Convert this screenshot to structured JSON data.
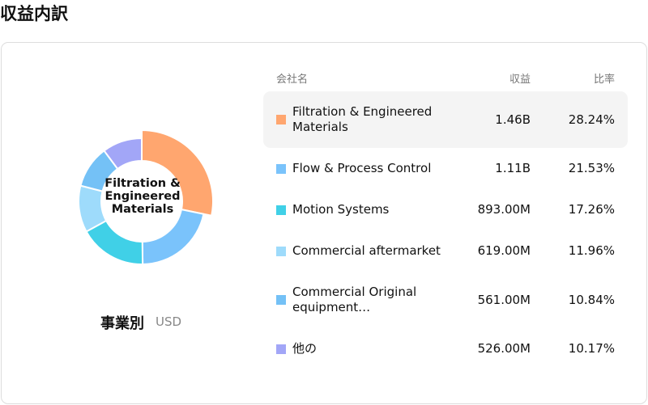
{
  "title": "収益内訳",
  "chart_data": {
    "type": "donut",
    "subtitle": "事業別",
    "unit": "USD",
    "categories": [
      "Filtration & Engineered Materials",
      "Flow & Process Control",
      "Motion Systems",
      "Commercial aftermarket",
      "Commercial Original equipment…",
      "他の"
    ],
    "values": [
      28.24,
      21.53,
      17.26,
      11.96,
      10.84,
      10.17
    ],
    "value_labels": [
      "28.24%",
      "21.53%",
      "17.26%",
      "11.96%",
      "10.84%",
      "10.17%"
    ],
    "colors": [
      "#ffa66f",
      "#7ac3fb",
      "#40d0e7",
      "#9edbfb",
      "#74c1f6",
      "#a2a6f7"
    ]
  },
  "table": {
    "columns": [
      "会社名",
      "収益",
      "比率"
    ],
    "revenue": [
      "1.46B",
      "1.11B",
      "893.00M",
      "619.00M",
      "561.00M",
      "526.00M"
    ]
  }
}
